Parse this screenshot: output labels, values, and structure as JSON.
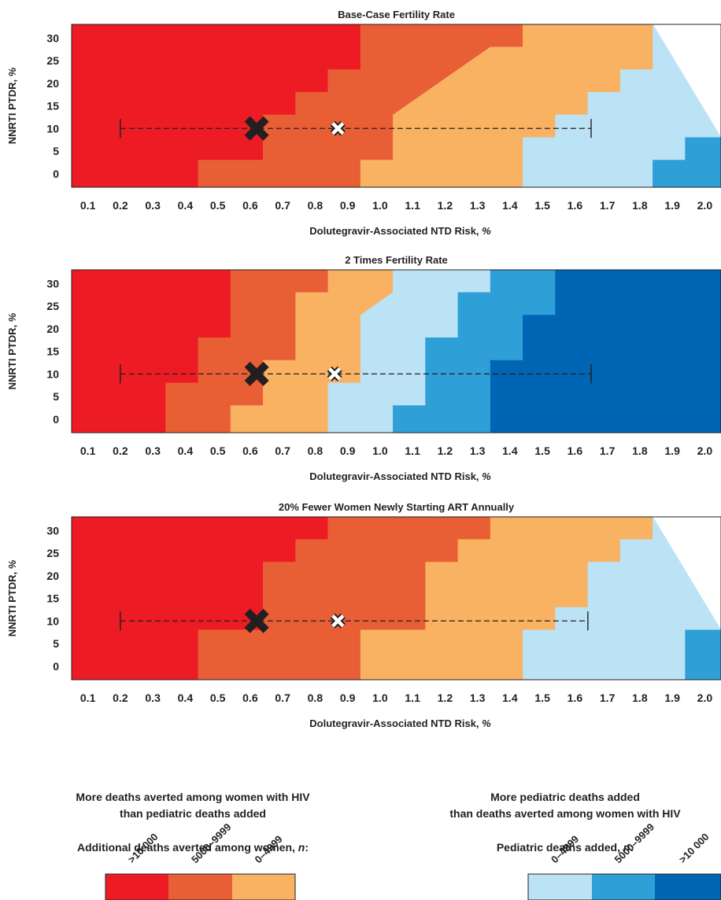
{
  "legend": {
    "left_heading_line1": "More deaths averted among women with HIV",
    "left_heading_line2": "than pediatric deaths added",
    "left_title_text": "Additional deaths averted among women, ",
    "left_title_var": "n",
    "left_title_end": ":",
    "right_heading_line1": "More pediatric deaths added",
    "right_heading_line2": "than deaths averted among women with HIV",
    "right_title_text": "Pediatric deaths added, ",
    "right_title_var": "n",
    "right_title_end": ":",
    "left_labels": [
      ">10 000",
      "5000–9999",
      "0–4999"
    ],
    "right_labels": [
      "0–4999",
      "5000–9999",
      ">10 000"
    ]
  },
  "colors": {
    "women_gt10000": "#ed1c24",
    "women_5000_9999": "#e95f35",
    "women_0_4999": "#f9b162",
    "peds_0_4999": "#bce2f5",
    "peds_5000_9999": "#2f9fd8",
    "peds_gt10000": "#0066b3",
    "text": "#231f20"
  },
  "chart_data": [
    {
      "type": "heatmap",
      "title": "Base-Case Fertility Rate",
      "xlabel": "Dolutegravir-Associated NTD Risk, %",
      "ylabel": "NNRTI PTDR, %",
      "x": [
        0.1,
        0.2,
        0.3,
        0.4,
        0.5,
        0.6,
        0.7,
        0.8,
        0.9,
        1.0,
        1.1,
        1.2,
        1.3,
        1.4,
        1.5,
        1.6,
        1.7,
        1.8,
        1.9,
        2.0
      ],
      "y": [
        0,
        5,
        10,
        15,
        20,
        25,
        30
      ],
      "x_tick_labels": [
        "0.1",
        "0.2",
        "0.3",
        "0.4",
        "0.5",
        "0.6",
        "0.7",
        "0.8",
        "0.9",
        "1.0",
        "1.1",
        "1.2",
        "1.3",
        "1.4",
        "1.5",
        "1.6",
        "1.7",
        "1.8",
        "1.9",
        "2.0"
      ],
      "y_tick_labels": [
        "0",
        "5",
        "10",
        "15",
        "20",
        "25",
        "30"
      ],
      "xlim": [
        0.05,
        2.05
      ],
      "ylim": [
        -3,
        33
      ],
      "category_levels": [
        "women >10 000",
        "women 5000–9999",
        "women 0–4999",
        "pediatric 0–4999",
        "pediatric 5000–9999",
        "pediatric >10 000"
      ],
      "boundaries": [
        [
          [
            -3,
            0.44
          ],
          [
            3,
            0.44
          ],
          [
            3,
            0.64
          ],
          [
            13,
            0.64
          ],
          [
            13,
            0.74
          ],
          [
            18,
            0.74
          ],
          [
            18,
            0.84
          ],
          [
            23,
            0.84
          ],
          [
            23,
            0.94
          ],
          [
            33,
            0.94
          ]
        ],
        [
          [
            -3,
            0.94
          ],
          [
            3,
            0.94
          ],
          [
            3,
            1.04
          ],
          [
            13,
            1.04
          ],
          [
            18,
            1.14
          ],
          [
            23,
            1.24
          ],
          [
            28,
            1.34
          ],
          [
            28,
            1.44
          ],
          [
            33,
            1.44
          ]
        ],
        [
          [
            -3,
            1.44
          ],
          [
            8,
            1.44
          ],
          [
            8,
            1.54
          ],
          [
            13,
            1.54
          ],
          [
            13,
            1.64
          ],
          [
            18,
            1.64
          ],
          [
            18,
            1.74
          ],
          [
            23,
            1.74
          ],
          [
            23,
            1.84
          ],
          [
            33,
            1.84
          ]
        ],
        [
          [
            -3,
            1.84
          ],
          [
            3,
            1.84
          ],
          [
            3,
            1.94
          ],
          [
            8,
            1.94
          ],
          [
            8,
            2.05
          ]
        ]
      ],
      "point_estimate": {
        "x": 0.62,
        "y": 10
      },
      "threshold_marker": {
        "x": 0.87,
        "y": 10
      },
      "range": {
        "x_min": 0.2,
        "x_max": 1.65,
        "y": 10
      }
    },
    {
      "type": "heatmap",
      "title": "2 Times Fertility Rate",
      "xlabel": "Dolutegravir-Associated NTD Risk, %",
      "ylabel": "NNRTI PTDR, %",
      "x": [
        0.1,
        0.2,
        0.3,
        0.4,
        0.5,
        0.6,
        0.7,
        0.8,
        0.9,
        1.0,
        1.1,
        1.2,
        1.3,
        1.4,
        1.5,
        1.6,
        1.7,
        1.8,
        1.9,
        2.0
      ],
      "y": [
        0,
        5,
        10,
        15,
        20,
        25,
        30
      ],
      "x_tick_labels": [
        "0.1",
        "0.2",
        "0.3",
        "0.4",
        "0.5",
        "0.6",
        "0.7",
        "0.8",
        "0.9",
        "1.0",
        "1.1",
        "1.2",
        "1.3",
        "1.4",
        "1.5",
        "1.6",
        "1.7",
        "1.8",
        "1.9",
        "2.0"
      ],
      "y_tick_labels": [
        "0",
        "5",
        "10",
        "15",
        "20",
        "25",
        "30"
      ],
      "xlim": [
        0.05,
        2.05
      ],
      "ylim": [
        -3,
        33
      ],
      "category_levels": [
        "women >10 000",
        "women 5000–9999",
        "women 0–4999",
        "pediatric 0–4999",
        "pediatric 5000–9999",
        "pediatric >10 000"
      ],
      "boundaries": [
        [
          [
            -3,
            0.34
          ],
          [
            8,
            0.34
          ],
          [
            8,
            0.44
          ],
          [
            18,
            0.44
          ],
          [
            18,
            0.54
          ],
          [
            33,
            0.54
          ]
        ],
        [
          [
            -3,
            0.54
          ],
          [
            3,
            0.54
          ],
          [
            3,
            0.64
          ],
          [
            13,
            0.64
          ],
          [
            13,
            0.74
          ],
          [
            28,
            0.74
          ],
          [
            28,
            0.84
          ],
          [
            33,
            0.84
          ]
        ],
        [
          [
            -3,
            0.84
          ],
          [
            8,
            0.84
          ],
          [
            8,
            0.94
          ],
          [
            23,
            0.94
          ],
          [
            23,
            0.94
          ],
          [
            28,
            1.04
          ],
          [
            33,
            1.04
          ]
        ],
        [
          [
            -3,
            1.04
          ],
          [
            3,
            1.04
          ],
          [
            3,
            1.14
          ],
          [
            18,
            1.14
          ],
          [
            18,
            1.24
          ],
          [
            28,
            1.24
          ],
          [
            28,
            1.34
          ],
          [
            33,
            1.34
          ]
        ],
        [
          [
            -3,
            1.34
          ],
          [
            13,
            1.34
          ],
          [
            13,
            1.44
          ],
          [
            23,
            1.44
          ],
          [
            23,
            1.54
          ],
          [
            33,
            1.54
          ]
        ]
      ],
      "point_estimate": {
        "x": 0.62,
        "y": 10
      },
      "threshold_marker": {
        "x": 0.86,
        "y": 10
      },
      "range": {
        "x_min": 0.2,
        "x_max": 1.65,
        "y": 10
      }
    },
    {
      "type": "heatmap",
      "title": "20% Fewer Women Newly Starting ART Annually",
      "xlabel": "Dolutegravir-Associated NTD Risk, %",
      "ylabel": "NNRTI PTDR, %",
      "x": [
        0.1,
        0.2,
        0.3,
        0.4,
        0.5,
        0.6,
        0.7,
        0.8,
        0.9,
        1.0,
        1.1,
        1.2,
        1.3,
        1.4,
        1.5,
        1.6,
        1.7,
        1.8,
        1.9,
        2.0
      ],
      "y": [
        0,
        5,
        10,
        15,
        20,
        25,
        30
      ],
      "x_tick_labels": [
        "0.1",
        "0.2",
        "0.3",
        "0.4",
        "0.5",
        "0.6",
        "0.7",
        "0.8",
        "0.9",
        "1.0",
        "1.1",
        "1.2",
        "1.3",
        "1.4",
        "1.5",
        "1.6",
        "1.7",
        "1.8",
        "1.9",
        "2.0"
      ],
      "y_tick_labels": [
        "0",
        "5",
        "10",
        "15",
        "20",
        "25",
        "30"
      ],
      "xlim": [
        0.05,
        2.05
      ],
      "ylim": [
        -3,
        33
      ],
      "category_levels": [
        "women >10 000",
        "women 5000–9999",
        "women 0–4999",
        "pediatric 0–4999",
        "pediatric 5000–9999",
        "pediatric >10 000"
      ],
      "boundaries": [
        [
          [
            -3,
            0.44
          ],
          [
            8,
            0.44
          ],
          [
            8,
            0.64
          ],
          [
            23,
            0.64
          ],
          [
            23,
            0.74
          ],
          [
            28,
            0.74
          ],
          [
            28,
            0.84
          ],
          [
            33,
            0.84
          ]
        ],
        [
          [
            -3,
            0.94
          ],
          [
            8,
            0.94
          ],
          [
            8,
            1.14
          ],
          [
            23,
            1.14
          ],
          [
            23,
            1.24
          ],
          [
            28,
            1.24
          ],
          [
            28,
            1.34
          ],
          [
            33,
            1.34
          ]
        ],
        [
          [
            -3,
            1.44
          ],
          [
            8,
            1.44
          ],
          [
            8,
            1.54
          ],
          [
            13,
            1.54
          ],
          [
            13,
            1.64
          ],
          [
            23,
            1.64
          ],
          [
            23,
            1.74
          ],
          [
            28,
            1.74
          ],
          [
            28,
            1.84
          ],
          [
            33,
            1.84
          ]
        ],
        [
          [
            -3,
            1.94
          ],
          [
            8,
            1.94
          ],
          [
            8,
            2.05
          ]
        ]
      ],
      "point_estimate": {
        "x": 0.62,
        "y": 10
      },
      "threshold_marker": {
        "x": 0.87,
        "y": 10
      },
      "range": {
        "x_min": 0.2,
        "x_max": 1.64,
        "y": 10
      }
    }
  ]
}
